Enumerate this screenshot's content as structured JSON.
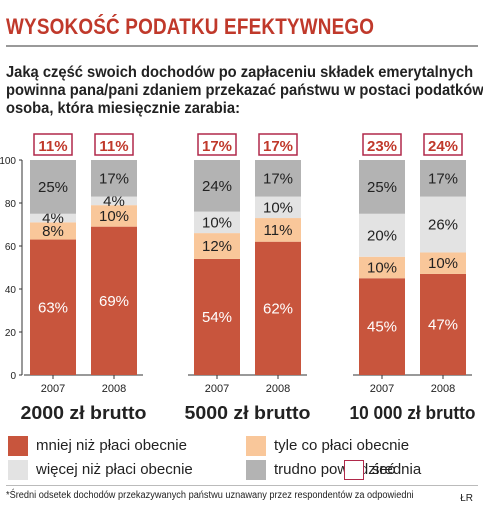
{
  "title": "WYSOKOŚĆ PODATKU EFEKTYWNEGO",
  "question": [
    "Jaką część swoich dochodów po zapłaceniu składek emerytalnych",
    "powinna pana/pani zdaniem przekazać państwu w postaci podatków",
    "osoba, która miesięcznie zarabia:"
  ],
  "footnote": "*Średni odsetek dochodów przekazywanych państwu uznawany przez respondentów za odpowiedni",
  "credit": "ŁR",
  "colors": {
    "less": "#c8553d",
    "same": "#f9c79a",
    "more": "#e3e3e3",
    "hard": "#b3b3b3",
    "average_border": "#b0294a"
  },
  "legend": [
    {
      "key": "less",
      "label": "mniej niż płaci obecnie"
    },
    {
      "key": "same",
      "label": "tyle co płaci obecnie"
    },
    {
      "key": "more",
      "label": "więcej niż płaci obecnie"
    },
    {
      "key": "hard",
      "label": "trudno powiedzieć"
    },
    {
      "key": "average",
      "label": "średnia"
    }
  ],
  "chart_data": {
    "type": "bar",
    "stacked": true,
    "ylim": [
      0,
      100
    ],
    "yticks": [
      "0",
      "20",
      "40",
      "60",
      "80",
      "100"
    ],
    "groups": [
      {
        "label": "2000 zł brutto",
        "bars": [
          {
            "year": "2007",
            "average": "11%",
            "values": {
              "less": 63,
              "same": 8,
              "more": 4,
              "hard": 25
            },
            "labels": {
              "less": "63%",
              "same": "8%",
              "more": "4%",
              "hard": "25%"
            }
          },
          {
            "year": "2008",
            "average": "11%",
            "values": {
              "less": 69,
              "same": 10,
              "more": 4,
              "hard": 17
            },
            "labels": {
              "less": "69%",
              "same": "10%",
              "more": "4%",
              "hard": "17%"
            }
          }
        ]
      },
      {
        "label": "5000 zł brutto",
        "bars": [
          {
            "year": "2007",
            "average": "17%",
            "values": {
              "less": 54,
              "same": 12,
              "more": 10,
              "hard": 24
            },
            "labels": {
              "less": "54%",
              "same": "12%",
              "more": "10%",
              "hard": "24%"
            }
          },
          {
            "year": "2008",
            "average": "17%",
            "values": {
              "less": 62,
              "same": 11,
              "more": 10,
              "hard": 17
            },
            "labels": {
              "less": "62%",
              "same": "11%",
              "more": "10%",
              "hard": "17%"
            }
          }
        ]
      },
      {
        "label": "10 000 zł brutto",
        "bars": [
          {
            "year": "2007",
            "average": "23%",
            "values": {
              "less": 45,
              "same": 10,
              "more": 20,
              "hard": 25
            },
            "labels": {
              "less": "45%",
              "same": "10%",
              "more": "20%",
              "hard": "25%"
            }
          },
          {
            "year": "2008",
            "average": "24%",
            "values": {
              "less": 47,
              "same": 10,
              "more": 26,
              "hard": 17
            },
            "labels": {
              "less": "47%",
              "same": "10%",
              "more": "26%",
              "hard": "17%"
            }
          }
        ]
      }
    ]
  }
}
